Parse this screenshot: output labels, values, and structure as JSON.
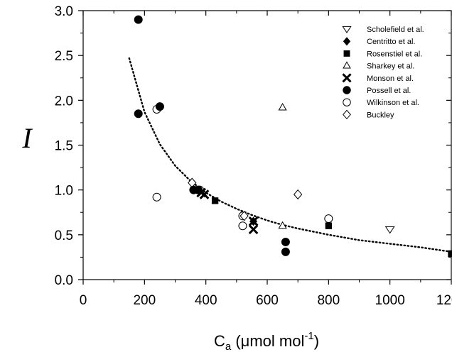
{
  "chart_data": {
    "type": "scatter",
    "xlabel": {
      "main": "C",
      "sub": "a",
      "unit": " (μmol mol",
      "sup": "-1",
      "close": ")"
    },
    "ylabel": "I",
    "xlim": [
      0,
      1200
    ],
    "ylim": [
      0.0,
      3.0
    ],
    "x_ticks": [
      0,
      200,
      400,
      600,
      800,
      1000,
      1200
    ],
    "x_tick_labels": [
      "0",
      "200",
      "400",
      "600",
      "800",
      "1000",
      "1200"
    ],
    "y_ticks": [
      0.0,
      0.5,
      1.0,
      1.5,
      2.0,
      2.5,
      3.0
    ],
    "y_tick_labels": [
      "0.0",
      "0.5",
      "1.0",
      "1.5",
      "2.0",
      "2.5",
      "3.0"
    ],
    "grid": false,
    "legend_position": "top-right",
    "series": [
      {
        "name": "Scholefield et al.",
        "marker": "triangle-down-open",
        "points": [
          [
            1000,
            0.56
          ]
        ]
      },
      {
        "name": "Centritto et al.",
        "marker": "diamond-filled",
        "points": [
          [
            555,
            0.65
          ]
        ]
      },
      {
        "name": "Rosenstiel  et al.",
        "marker": "square-filled",
        "points": [
          [
            430,
            0.88
          ],
          [
            800,
            0.6
          ],
          [
            1200,
            0.29
          ]
        ]
      },
      {
        "name": "Sharkey et al.",
        "marker": "triangle-up-open",
        "points": [
          [
            650,
            1.92
          ],
          [
            650,
            0.6
          ]
        ]
      },
      {
        "name": "Monson et al.",
        "marker": "x",
        "points": [
          [
            385,
            0.97
          ],
          [
            395,
            0.95
          ],
          [
            555,
            0.65
          ],
          [
            555,
            0.56
          ]
        ]
      },
      {
        "name": "Possell et al.",
        "marker": "circle-filled",
        "points": [
          [
            180,
            2.9
          ],
          [
            180,
            1.85
          ],
          [
            250,
            1.93
          ],
          [
            360,
            1.0
          ],
          [
            375,
            1.0
          ],
          [
            660,
            0.42
          ],
          [
            660,
            0.31
          ]
        ]
      },
      {
        "name": "Wilkinson et al.",
        "marker": "circle-open",
        "points": [
          [
            240,
            1.9
          ],
          [
            240,
            0.92
          ],
          [
            380,
            1.0
          ],
          [
            520,
            0.71
          ],
          [
            520,
            0.6
          ],
          [
            800,
            0.68
          ]
        ]
      },
      {
        "name": "Buckley",
        "marker": "diamond-open",
        "points": [
          [
            355,
            1.08
          ],
          [
            525,
            0.71
          ],
          [
            700,
            0.95
          ]
        ]
      }
    ],
    "fit_curve": {
      "style": "dotted",
      "x_range": [
        150,
        1200
      ],
      "points": [
        [
          150,
          2.47
        ],
        [
          200,
          1.87
        ],
        [
          250,
          1.51
        ],
        [
          300,
          1.27
        ],
        [
          350,
          1.1
        ],
        [
          400,
          0.97
        ],
        [
          450,
          0.87
        ],
        [
          500,
          0.79
        ],
        [
          550,
          0.72
        ],
        [
          600,
          0.66
        ],
        [
          650,
          0.61
        ],
        [
          700,
          0.57
        ],
        [
          800,
          0.5
        ],
        [
          900,
          0.44
        ],
        [
          1000,
          0.4
        ],
        [
          1100,
          0.36
        ],
        [
          1200,
          0.31
        ]
      ]
    }
  }
}
